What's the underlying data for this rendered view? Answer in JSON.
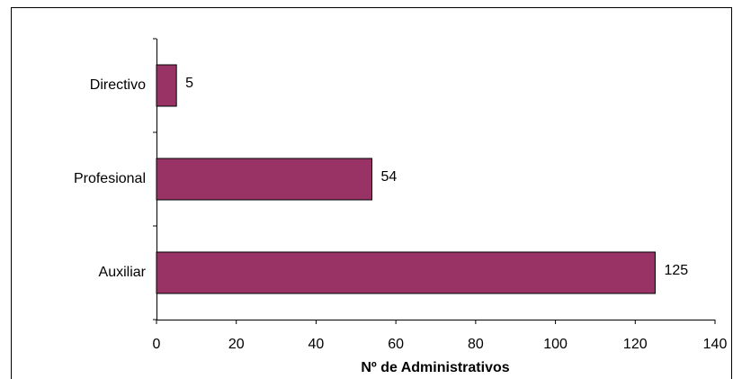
{
  "chart_data": {
    "type": "barh",
    "categories": [
      "Directivo",
      "Profesional",
      "Auxiliar"
    ],
    "values": [
      5,
      54,
      125
    ],
    "color": "#993366",
    "xlabel": "Nº de Administrativos",
    "xlim": [
      0,
      140
    ],
    "xticks": [
      0,
      20,
      40,
      60,
      80,
      100,
      120,
      140
    ],
    "grid": false
  }
}
